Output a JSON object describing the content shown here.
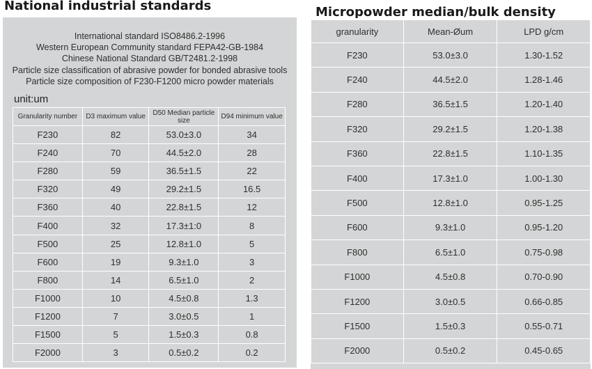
{
  "left": {
    "title": "National industrial standards",
    "intro": [
      "International standard ISO8486.2-1996",
      "Western European Community standard FEPA42-GB-1984",
      "Chinese National Standard GB/T2481.2-1998",
      "Particle size classification of abrasive powder for bonded abrasive tools",
      "Particle size composition of F230-F1200 micro powder materials"
    ],
    "unit": "unit:um",
    "headers": [
      "Granularity number",
      "D3 maximum value",
      "D50 Median particle size",
      "D94 minimum value"
    ],
    "rows": [
      [
        "F230",
        "82",
        "53.0±3.0",
        "34"
      ],
      [
        "F240",
        "70",
        "44.5±2.0",
        "28"
      ],
      [
        "F280",
        "59",
        "36.5±1.5",
        "22"
      ],
      [
        "F320",
        "49",
        "29.2±1.5",
        "16.5"
      ],
      [
        "F360",
        "40",
        "22.8±1.5",
        "12"
      ],
      [
        "F400",
        "32",
        "17.3±1:0",
        "8"
      ],
      [
        "F500",
        "25",
        "12.8±1.0",
        "5"
      ],
      [
        "F600",
        "19",
        "9.3±1.0",
        "3"
      ],
      [
        "F800",
        "14",
        "6.5±1.0",
        "2"
      ],
      [
        "F1000",
        "10",
        "4.5±0.8",
        "1.3"
      ],
      [
        "F1200",
        "7",
        "3.0±0.5",
        "1"
      ],
      [
        "F1500",
        "5",
        "1.5±0.3",
        "0.8"
      ],
      [
        "F2000",
        "3",
        "0.5±0.2",
        "0.2"
      ]
    ]
  },
  "right": {
    "title": "Micropowder median/bulk density",
    "headers": [
      "granularity",
      "Mean-Øum",
      "LPD g/cm"
    ],
    "rows": [
      [
        "F230",
        "53.0±3.0",
        "1.30-1.52"
      ],
      [
        "F240",
        "44.5±2.0",
        "1.28-1.46"
      ],
      [
        "F280",
        "36.5±1.5",
        "1.20-1.40"
      ],
      [
        "F320",
        "29.2±1.5",
        "1.20-1.38"
      ],
      [
        "F360",
        "22.8±1.5",
        "1.10-1.35"
      ],
      [
        "F400",
        "17.3±1.0",
        "1.00-1.30"
      ],
      [
        "F500",
        "12.8±1.0",
        "0.95-1.25"
      ],
      [
        "F600",
        "9.3±1.0",
        "0.95-1.20"
      ],
      [
        "F800",
        "6.5±1.0",
        "0.75-0.98"
      ],
      [
        "F1000",
        "4.5±0.8",
        "0.70-0.90"
      ],
      [
        "F1200",
        "3.0±0.5",
        "0.66-0.85"
      ],
      [
        "F1500",
        "1.5±0.3",
        "0.55-0.71"
      ],
      [
        "F2000",
        "0.5±0.2",
        "0.45-0.65"
      ]
    ]
  }
}
